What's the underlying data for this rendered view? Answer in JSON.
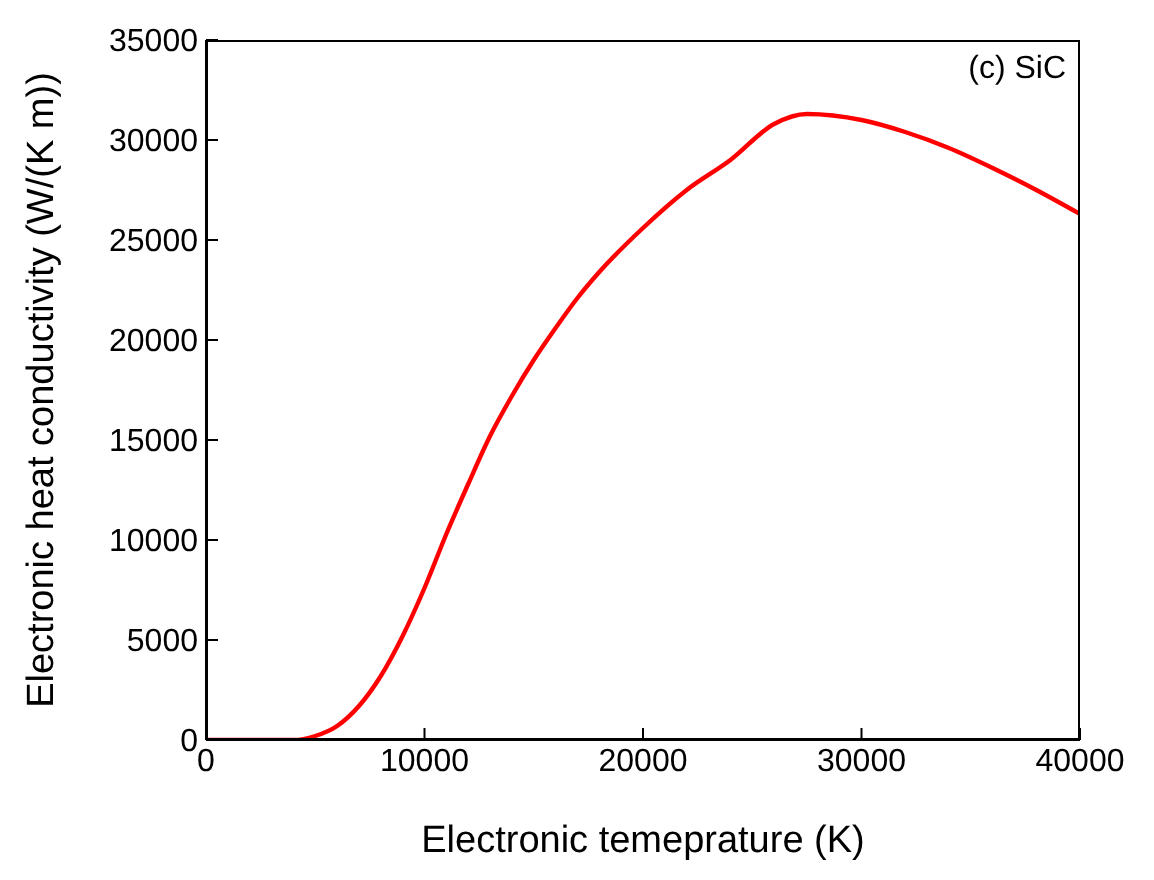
{
  "chart_data": {
    "type": "line",
    "xlabel": "Electronic temeprature (K)",
    "ylabel": "Electronic heat conductivity (W/(K m))",
    "annotations": [
      "(c) SiC"
    ],
    "xlim": [
      0,
      40000
    ],
    "xticks": [
      0,
      10000,
      20000,
      30000,
      40000
    ],
    "ylim": [
      0,
      35000
    ],
    "yticks": [
      0,
      5000,
      10000,
      15000,
      20000,
      25000,
      30000,
      35000
    ],
    "grid": false,
    "marker": "none",
    "line_style": "solid",
    "x": [
      0,
      2000,
      4000,
      5000,
      6000,
      7000,
      8000,
      9000,
      10000,
      11000,
      12000,
      13000,
      14000,
      15000,
      16000,
      17000,
      18000,
      20000,
      22000,
      24000,
      26000,
      27500,
      30000,
      32000,
      34000,
      36000,
      38000,
      40000
    ],
    "series": [
      {
        "color": "#ff0000",
        "values": [
          0,
          0,
          0,
          200,
          700,
          1700,
          3200,
          5200,
          7600,
          10300,
          12800,
          15200,
          17200,
          19000,
          20600,
          22100,
          23400,
          25600,
          27500,
          29000,
          30800,
          31300,
          31000,
          30400,
          29600,
          28600,
          27500,
          26300
        ]
      }
    ]
  }
}
